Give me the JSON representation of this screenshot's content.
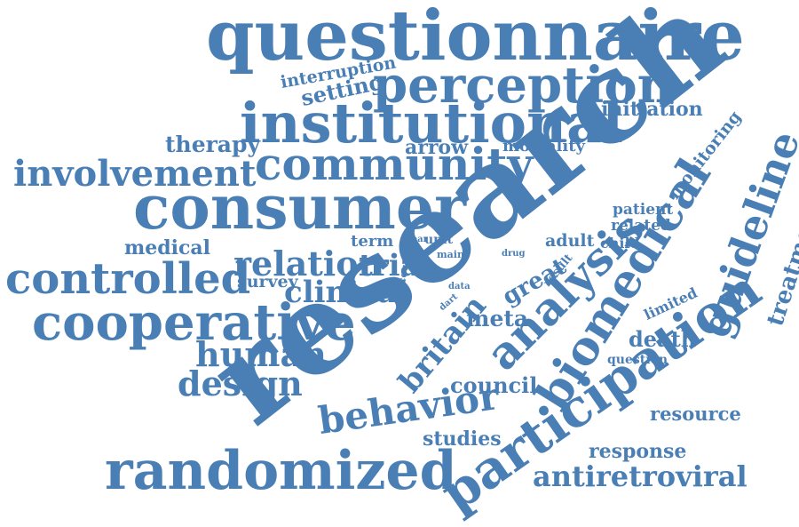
{
  "colors": {
    "text": "#4a7fb5",
    "background": "#ffffff"
  },
  "words": [
    {
      "key": "questionnaire",
      "text": "questionnaire"
    },
    {
      "key": "interruption",
      "text": "interruption"
    },
    {
      "key": "setting",
      "text": "setting"
    },
    {
      "key": "perception",
      "text": "perception"
    },
    {
      "key": "institutional",
      "text": "institutional"
    },
    {
      "key": "initiation",
      "text": "initiation"
    },
    {
      "key": "therapy",
      "text": "therapy"
    },
    {
      "key": "arrow",
      "text": "arrow"
    },
    {
      "key": "mortality",
      "text": "mortality"
    },
    {
      "key": "monitoring",
      "text": "monitoring"
    },
    {
      "key": "involvement",
      "text": "involvement"
    },
    {
      "key": "community",
      "text": "community"
    },
    {
      "key": "research",
      "text": "research"
    },
    {
      "key": "consumer",
      "text": "consumer"
    },
    {
      "key": "guideline",
      "text": "guideline"
    },
    {
      "key": "treatment",
      "text": "treatment"
    },
    {
      "key": "patient",
      "text": "patient"
    },
    {
      "key": "related",
      "text": "related"
    },
    {
      "key": "biomedical",
      "text": "biomedical"
    },
    {
      "key": "medical",
      "text": "medical"
    },
    {
      "key": "term",
      "text": "term"
    },
    {
      "key": "year",
      "text": "year"
    },
    {
      "key": "unit",
      "text": "unit"
    },
    {
      "key": "main",
      "text": "main"
    },
    {
      "key": "drug",
      "text": "drug"
    },
    {
      "key": "adult",
      "text": "adult"
    },
    {
      "key": "child",
      "text": "child"
    },
    {
      "key": "controlled",
      "text": "controlled"
    },
    {
      "key": "relation",
      "text": "relation"
    },
    {
      "key": "trial",
      "text": "trial"
    },
    {
      "key": "count",
      "text": "count"
    },
    {
      "key": "survey",
      "text": "survey"
    },
    {
      "key": "data",
      "text": "data"
    },
    {
      "key": "dart",
      "text": "dart"
    },
    {
      "key": "clinical",
      "text": "clinical"
    },
    {
      "key": "great",
      "text": "great"
    },
    {
      "key": "result",
      "text": "result"
    },
    {
      "key": "analysis",
      "text": "analysis"
    },
    {
      "key": "limited",
      "text": "limited"
    },
    {
      "key": "cooperative",
      "text": "cooperative"
    },
    {
      "key": "meta",
      "text": "meta"
    },
    {
      "key": "death",
      "text": "death"
    },
    {
      "key": "human",
      "text": "human"
    },
    {
      "key": "britain",
      "text": "britain"
    },
    {
      "key": "question",
      "text": "question"
    },
    {
      "key": "participation",
      "text": "participation"
    },
    {
      "key": "design",
      "text": "design"
    },
    {
      "key": "council",
      "text": "council"
    },
    {
      "key": "behavior",
      "text": "behavior"
    },
    {
      "key": "resource",
      "text": "resource"
    },
    {
      "key": "studies",
      "text": "studies"
    },
    {
      "key": "response",
      "text": "response"
    },
    {
      "key": "randomized",
      "text": "randomized"
    },
    {
      "key": "antiretroviral",
      "text": "antiretroviral"
    }
  ]
}
